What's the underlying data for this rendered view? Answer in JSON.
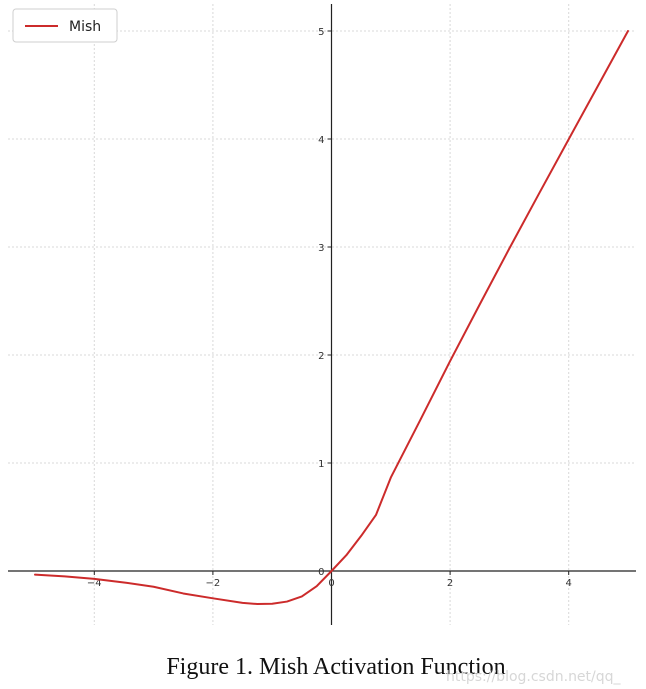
{
  "chart_data": {
    "type": "line",
    "xlim": [
      -5,
      5
    ],
    "ylim": [
      -0.5,
      5.25
    ],
    "xticks": [
      -4,
      -2,
      0,
      2,
      4
    ],
    "yticks": [
      0,
      1,
      2,
      3,
      4,
      5
    ],
    "grid": true,
    "legend": {
      "placement": "top-left",
      "entries": [
        "Mish"
      ]
    },
    "series": [
      {
        "name": "Mish",
        "color": "#cc2b2b",
        "x": [
          -5,
          -4.5,
          -4,
          -3.5,
          -3,
          -2.5,
          -2,
          -1.5,
          -1.25,
          -1,
          -0.75,
          -0.5,
          -0.25,
          0,
          0.25,
          0.5,
          0.75,
          1,
          1.5,
          2,
          2.5,
          3,
          3.5,
          4,
          4.5,
          5
        ],
        "y": [
          -0.034,
          -0.05,
          -0.073,
          -0.106,
          -0.146,
          -0.208,
          -0.253,
          -0.295,
          -0.306,
          -0.303,
          -0.283,
          -0.236,
          -0.141,
          0,
          0.146,
          0.325,
          0.519,
          0.865,
          1.401,
          1.944,
          2.469,
          2.987,
          3.495,
          3.998,
          4.499,
          5.0
        ]
      }
    ]
  },
  "caption": "Figure 1.  Mish Activation Function",
  "watermark": "https://blog.csdn.net/qq_"
}
